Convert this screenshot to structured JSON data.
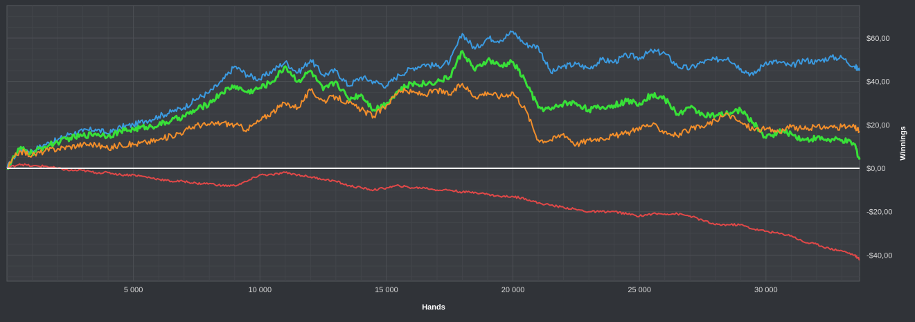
{
  "chart_data": {
    "type": "line",
    "title": "",
    "xlabel": "Hands",
    "ylabel": "Winnings",
    "xlim": [
      0,
      33700
    ],
    "ylim": [
      -52,
      75
    ],
    "x_ticks": [
      5000,
      10000,
      15000,
      20000,
      25000,
      30000
    ],
    "x_tick_labels": [
      "5 000",
      "10 000",
      "15 000",
      "20 000",
      "25 000",
      "30 000"
    ],
    "y_ticks": [
      -40,
      -20,
      0,
      20,
      40,
      60
    ],
    "y_tick_labels": [
      "-$40,00",
      "-$20,00",
      "$0,00",
      "$20,00",
      "$40,00",
      "$60,00"
    ],
    "grid": true,
    "y_axis_position": "right",
    "legend": "none",
    "colors": {
      "background": "#303338",
      "plot_area": "#3a3d42",
      "grid_major": "#4d5055",
      "grid_minor": "#42454a",
      "zero_line": "#ffffff"
    },
    "series": [
      {
        "color": "#3b9ae0",
        "width": 2,
        "x": [
          0,
          500,
          1000,
          1500,
          2000,
          2500,
          3000,
          3500,
          4000,
          4500,
          5000,
          5500,
          6000,
          6500,
          7000,
          7500,
          8000,
          8500,
          9000,
          9500,
          10000,
          10500,
          11000,
          11500,
          12000,
          12500,
          13000,
          13500,
          14000,
          14500,
          15000,
          15500,
          16000,
          16500,
          17000,
          17500,
          18000,
          18500,
          19000,
          19500,
          20000,
          20500,
          21000,
          21500,
          22000,
          22500,
          23000,
          23500,
          24000,
          24500,
          25000,
          25500,
          26000,
          26500,
          27000,
          27500,
          28000,
          28500,
          29000,
          29500,
          30000,
          30500,
          31000,
          31500,
          32000,
          32500,
          33000,
          33500,
          33700
        ],
        "values": [
          0,
          9,
          8,
          11,
          13,
          16,
          17,
          18,
          16,
          19,
          20,
          22,
          24,
          26,
          28,
          32,
          35,
          40,
          47,
          43,
          41,
          45,
          49,
          44,
          50,
          43,
          45,
          38,
          42,
          40,
          38,
          43,
          46,
          48,
          47,
          49,
          62,
          55,
          60,
          59,
          63,
          57,
          56,
          44,
          47,
          48,
          46,
          50,
          49,
          52,
          51,
          54,
          53,
          47,
          46,
          49,
          50,
          51,
          46,
          43,
          49,
          49,
          47,
          50,
          49,
          51,
          51,
          47,
          45
        ]
      },
      {
        "color": "#38e038",
        "width": 3,
        "x": [
          0,
          500,
          1000,
          1500,
          2000,
          2500,
          3000,
          3500,
          4000,
          4500,
          5000,
          5500,
          6000,
          6500,
          7000,
          7500,
          8000,
          8500,
          9000,
          9500,
          10000,
          10500,
          11000,
          11500,
          12000,
          12500,
          13000,
          13500,
          14000,
          14500,
          15000,
          15500,
          16000,
          16500,
          17000,
          17500,
          18000,
          18500,
          19000,
          19500,
          20000,
          20500,
          21000,
          21500,
          22000,
          22500,
          23000,
          23500,
          24000,
          24500,
          25000,
          25500,
          26000,
          26500,
          27000,
          27500,
          28000,
          28500,
          29000,
          29500,
          30000,
          30500,
          31000,
          31500,
          32000,
          32500,
          33000,
          33500,
          33700
        ],
        "values": [
          0,
          9,
          7,
          10,
          12,
          14,
          15,
          16,
          15,
          17,
          18,
          19,
          20,
          22,
          24,
          27,
          30,
          35,
          38,
          35,
          37,
          40,
          47,
          40,
          45,
          36,
          40,
          32,
          34,
          27,
          30,
          36,
          39,
          39,
          40,
          42,
          54,
          45,
          50,
          47,
          49,
          40,
          28,
          27,
          30,
          30,
          27,
          28,
          29,
          31,
          30,
          34,
          32,
          25,
          28,
          25,
          24,
          25,
          27,
          21,
          14,
          17,
          16,
          13,
          14,
          13,
          13,
          11,
          4
        ]
      },
      {
        "color": "#f28e2b",
        "width": 2,
        "x": [
          0,
          500,
          1000,
          1500,
          2000,
          2500,
          3000,
          3500,
          4000,
          4500,
          5000,
          5500,
          6000,
          6500,
          7000,
          7500,
          8000,
          8500,
          9000,
          9500,
          10000,
          10500,
          11000,
          11500,
          12000,
          12500,
          13000,
          13500,
          14000,
          14500,
          15000,
          15500,
          16000,
          16500,
          17000,
          17500,
          18000,
          18500,
          19000,
          19500,
          20000,
          20500,
          21000,
          21500,
          22000,
          22500,
          23000,
          23500,
          24000,
          24500,
          25000,
          25500,
          26000,
          26500,
          27000,
          27500,
          28000,
          28500,
          29000,
          29500,
          30000,
          30500,
          31000,
          31500,
          32000,
          32500,
          33000,
          33500,
          33700
        ],
        "values": [
          0,
          8,
          6,
          8,
          9,
          10,
          11,
          11,
          9,
          11,
          11,
          12,
          13,
          15,
          17,
          20,
          20,
          21,
          20,
          18,
          22,
          26,
          30,
          28,
          36,
          31,
          33,
          30,
          27,
          24,
          29,
          36,
          35,
          34,
          36,
          34,
          39,
          33,
          35,
          33,
          35,
          27,
          13,
          13,
          16,
          11,
          13,
          14,
          15,
          16,
          19,
          20,
          17,
          15,
          18,
          19,
          22,
          25,
          21,
          18,
          18,
          17,
          19,
          18,
          19,
          19,
          19,
          19,
          17
        ]
      },
      {
        "color": "#e04848",
        "width": 2,
        "x": [
          0,
          500,
          1000,
          1500,
          2000,
          2500,
          3000,
          3500,
          4000,
          4500,
          5000,
          5500,
          6000,
          6500,
          7000,
          7500,
          8000,
          8500,
          9000,
          9500,
          10000,
          10500,
          11000,
          11500,
          12000,
          12500,
          13000,
          13500,
          14000,
          14500,
          15000,
          15500,
          16000,
          16500,
          17000,
          17500,
          18000,
          18500,
          19000,
          19500,
          20000,
          20500,
          21000,
          21500,
          22000,
          22500,
          23000,
          23500,
          24000,
          24500,
          25000,
          25500,
          26000,
          26500,
          27000,
          27500,
          28000,
          28500,
          29000,
          29500,
          30000,
          30500,
          31000,
          31500,
          32000,
          32500,
          33000,
          33500,
          33700
        ],
        "values": [
          0,
          2,
          1,
          1,
          0,
          -1,
          -1,
          -2,
          -2,
          -3,
          -3,
          -4,
          -5,
          -6,
          -6,
          -7,
          -7,
          -8,
          -8,
          -6,
          -3,
          -3,
          -2,
          -3,
          -4,
          -5,
          -6,
          -8,
          -9,
          -10,
          -9,
          -8,
          -9,
          -9,
          -10,
          -10,
          -11,
          -11,
          -12,
          -13,
          -13,
          -14,
          -16,
          -17,
          -18,
          -19,
          -20,
          -20,
          -20,
          -21,
          -22,
          -21,
          -21,
          -21,
          -22,
          -24,
          -26,
          -26,
          -26,
          -28,
          -29,
          -30,
          -31,
          -34,
          -35,
          -37,
          -38,
          -40,
          -42
        ]
      }
    ]
  }
}
